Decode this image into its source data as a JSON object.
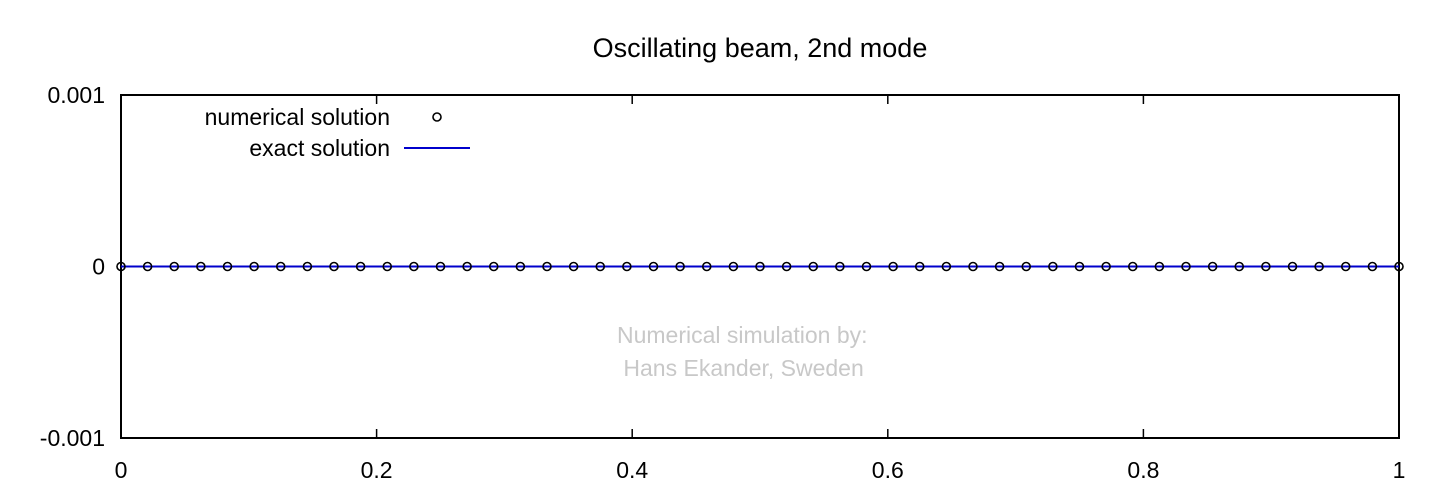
{
  "chart_data": {
    "type": "line",
    "title": "Oscillating beam, 2nd mode",
    "xlabel": "",
    "ylabel": "",
    "xlim": [
      0,
      1
    ],
    "ylim": [
      -0.001,
      0.001
    ],
    "x_ticks": [
      {
        "value": 0,
        "label": "0"
      },
      {
        "value": 0.2,
        "label": "0.2"
      },
      {
        "value": 0.4,
        "label": "0.4"
      },
      {
        "value": 0.6,
        "label": "0.6"
      },
      {
        "value": 0.8,
        "label": "0.8"
      },
      {
        "value": 1,
        "label": "1"
      }
    ],
    "y_ticks": [
      {
        "value": -0.001,
        "label": "-0.001"
      },
      {
        "value": 0,
        "label": "0"
      },
      {
        "value": 0.001,
        "label": "0.001"
      }
    ],
    "grid": false,
    "legend": "top-left",
    "series": [
      {
        "name": "numerical solution",
        "style": "points",
        "marker": "open-circle",
        "color": "#000000",
        "x": [
          0,
          0.02083,
          0.04167,
          0.0625,
          0.08333,
          0.10417,
          0.125,
          0.14583,
          0.16667,
          0.1875,
          0.20833,
          0.22917,
          0.25,
          0.27083,
          0.29167,
          0.3125,
          0.33333,
          0.35417,
          0.375,
          0.39583,
          0.41667,
          0.4375,
          0.45833,
          0.47917,
          0.5,
          0.52083,
          0.54167,
          0.5625,
          0.58333,
          0.60417,
          0.625,
          0.64583,
          0.66667,
          0.6875,
          0.70833,
          0.72917,
          0.75,
          0.77083,
          0.79167,
          0.8125,
          0.83333,
          0.85417,
          0.875,
          0.89583,
          0.91667,
          0.9375,
          0.95833,
          0.97917,
          1
        ],
        "y": [
          0,
          0,
          0,
          0,
          0,
          0,
          0,
          0,
          0,
          0,
          0,
          0,
          0,
          0,
          0,
          0,
          0,
          0,
          0,
          0,
          0,
          0,
          0,
          0,
          0,
          0,
          0,
          0,
          0,
          0,
          0,
          0,
          0,
          0,
          0,
          0,
          0,
          0,
          0,
          0,
          0,
          0,
          0,
          0,
          0,
          0,
          0,
          0,
          0
        ]
      },
      {
        "name": "exact solution",
        "style": "line",
        "color": "#0000cc",
        "x": [
          0,
          1
        ],
        "y": [
          0,
          0
        ]
      }
    ],
    "annotation": [
      "Numerical simulation by:",
      " Hans Ekander, Sweden"
    ]
  }
}
